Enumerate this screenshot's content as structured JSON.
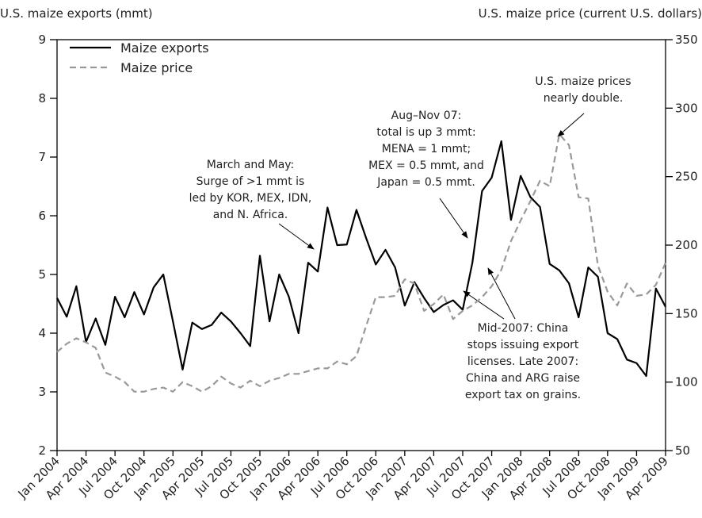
{
  "chart_data": {
    "type": "line",
    "y_label": "U.S. maize exports (mmt)",
    "y2_label": "U.S. maize price (current U.S. dollars)",
    "categories": [
      "Jan 2004",
      null,
      null,
      "Apr 2004",
      null,
      null,
      "Jul 2004",
      null,
      null,
      "Oct 2004",
      null,
      null,
      "Jan 2005",
      null,
      null,
      "Apr 2005",
      null,
      null,
      "Jul 2005",
      null,
      null,
      "Oct 2005",
      null,
      null,
      "Jan 2006",
      null,
      null,
      "Apr 2006",
      null,
      null,
      "Jul 2006",
      null,
      null,
      "Oct 2006",
      null,
      null,
      "Jan 2007",
      null,
      null,
      "Apr 2007",
      null,
      null,
      "Jul 2007",
      null,
      null,
      "Oct 2007",
      null,
      null,
      "Jan 2008",
      null,
      null,
      "Apr 2008",
      null,
      null,
      "Jul 2008",
      null,
      null,
      "Oct 2008",
      null,
      null,
      "Jan 2009",
      null,
      null,
      "Apr 2009"
    ],
    "series": [
      {
        "name": "Maize exports",
        "color": "#000000",
        "dash": false,
        "values": [
          4.6,
          4.28,
          4.8,
          3.85,
          4.25,
          3.8,
          4.62,
          4.27,
          4.7,
          4.32,
          4.78,
          5.0,
          4.2,
          3.38,
          4.18,
          4.07,
          4.14,
          4.35,
          4.2,
          4.0,
          3.78,
          5.32,
          4.2,
          5.0,
          4.62,
          4.0,
          5.2,
          5.05,
          6.14,
          5.5,
          5.51,
          6.1,
          5.62,
          5.17,
          5.42,
          5.12,
          4.47,
          4.87,
          4.6,
          4.36,
          4.48,
          4.56,
          4.4,
          5.2,
          6.42,
          6.65,
          7.27,
          5.93,
          6.68,
          6.32,
          6.15,
          5.18,
          5.07,
          4.85,
          4.27,
          5.12,
          4.96,
          4.0,
          3.9,
          3.55,
          3.49,
          3.27,
          4.76,
          4.45
        ]
      },
      {
        "name": "Maize price",
        "color": "#999999",
        "dash": true,
        "axis": "y2",
        "values": [
          122,
          128,
          132,
          129,
          125,
          107,
          104,
          100,
          93,
          93,
          95,
          96,
          93,
          100,
          97,
          93,
          97,
          104,
          99,
          96,
          101,
          97,
          101,
          103,
          106,
          106,
          108,
          110,
          110,
          115,
          113,
          119,
          141,
          162,
          162,
          163,
          175,
          172,
          152,
          157,
          164,
          146,
          152,
          156,
          162,
          170,
          182,
          203,
          218,
          232,
          247,
          243,
          281,
          273,
          235,
          234,
          185,
          166,
          156,
          172,
          163,
          164,
          171,
          187
        ]
      }
    ],
    "ylim": [
      2,
      9
    ],
    "yticks": [
      2,
      3,
      4,
      5,
      6,
      7,
      8,
      9
    ],
    "y2lim": [
      50,
      350
    ],
    "y2ticks": [
      50,
      100,
      150,
      200,
      250,
      300,
      350
    ],
    "legend": "upper left",
    "annotations": [
      [
        "March and May:",
        "Surge of >1 mmt is",
        "led by KOR, MEX, IDN,",
        "and N. Africa."
      ],
      [
        "Aug–Nov 07:",
        "total is up 3 mmt:",
        "MENA = 1 mmt;",
        "MEX = 0.5 mmt, and",
        "Japan = 0.5 mmt."
      ],
      [
        "U.S. maize prices",
        "nearly double."
      ],
      [
        "Mid-2007: China",
        "stops issuing export",
        "licenses. Late 2007:",
        "China and ARG raise",
        "export tax on grains."
      ]
    ]
  }
}
